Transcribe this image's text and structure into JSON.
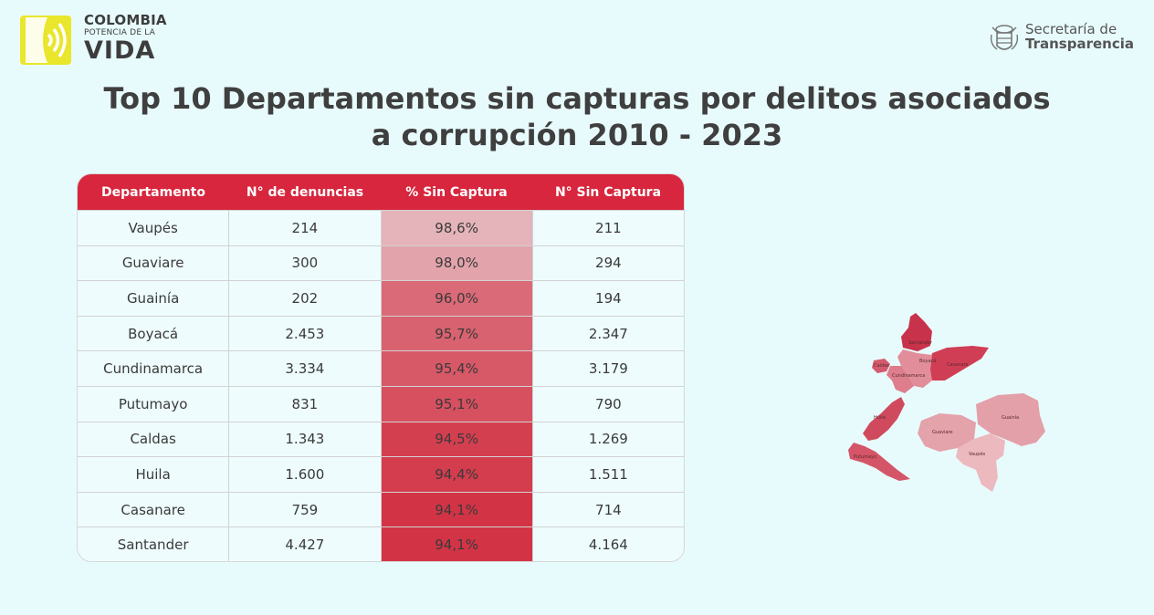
{
  "header": {
    "brand_line1": "COLOMBIA",
    "brand_line2": "POTENCIA DE LA",
    "brand_line3": "VIDA",
    "org_line1": "Secretaría de",
    "org_line2": "Transparencia"
  },
  "title": "Top 10 Departamentos sin capturas por delitos asociados a corrupción 2010 - 2023",
  "colors": {
    "header_bg": "#d7263d",
    "background": "#e8fbfc",
    "logo_yellow": "#e9e62b"
  },
  "table": {
    "columns": [
      "Departamento",
      "N° de denuncias",
      "% Sin Captura",
      "N° Sin Captura"
    ],
    "rows": [
      {
        "departamento": "Vaupés",
        "denuncias": "214",
        "pct": "98,6%",
        "sin_captura": "211",
        "heat": 0.986
      },
      {
        "departamento": "Guaviare",
        "denuncias": "300",
        "pct": "98,0%",
        "sin_captura": "294",
        "heat": 0.98
      },
      {
        "departamento": "Guainía",
        "denuncias": "202",
        "pct": "96,0%",
        "sin_captura": "194",
        "heat": 0.96
      },
      {
        "departamento": "Boyacá",
        "denuncias": "2.453",
        "pct": "95,7%",
        "sin_captura": "2.347",
        "heat": 0.957
      },
      {
        "departamento": "Cundinamarca",
        "denuncias": "3.334",
        "pct": "95,4%",
        "sin_captura": "3.179",
        "heat": 0.954
      },
      {
        "departamento": "Putumayo",
        "denuncias": "831",
        "pct": "95,1%",
        "sin_captura": "790",
        "heat": 0.951
      },
      {
        "departamento": "Caldas",
        "denuncias": "1.343",
        "pct": "94,5%",
        "sin_captura": "1.269",
        "heat": 0.945
      },
      {
        "departamento": "Huila",
        "denuncias": "1.600",
        "pct": "94,4%",
        "sin_captura": "1.511",
        "heat": 0.944
      },
      {
        "departamento": "Casanare",
        "denuncias": "759",
        "pct": "94,1%",
        "sin_captura": "714",
        "heat": 0.941
      },
      {
        "departamento": "Santander",
        "denuncias": "4.427",
        "pct": "94,1%",
        "sin_captura": "4.164",
        "heat": 0.941
      }
    ]
  },
  "map": {
    "labels": [
      "Santander",
      "Boyacá",
      "Casanare",
      "Cundinamarca",
      "Caldas",
      "Huila",
      "Putumayo",
      "Guainía",
      "Guaviare",
      "Vaupés"
    ]
  }
}
